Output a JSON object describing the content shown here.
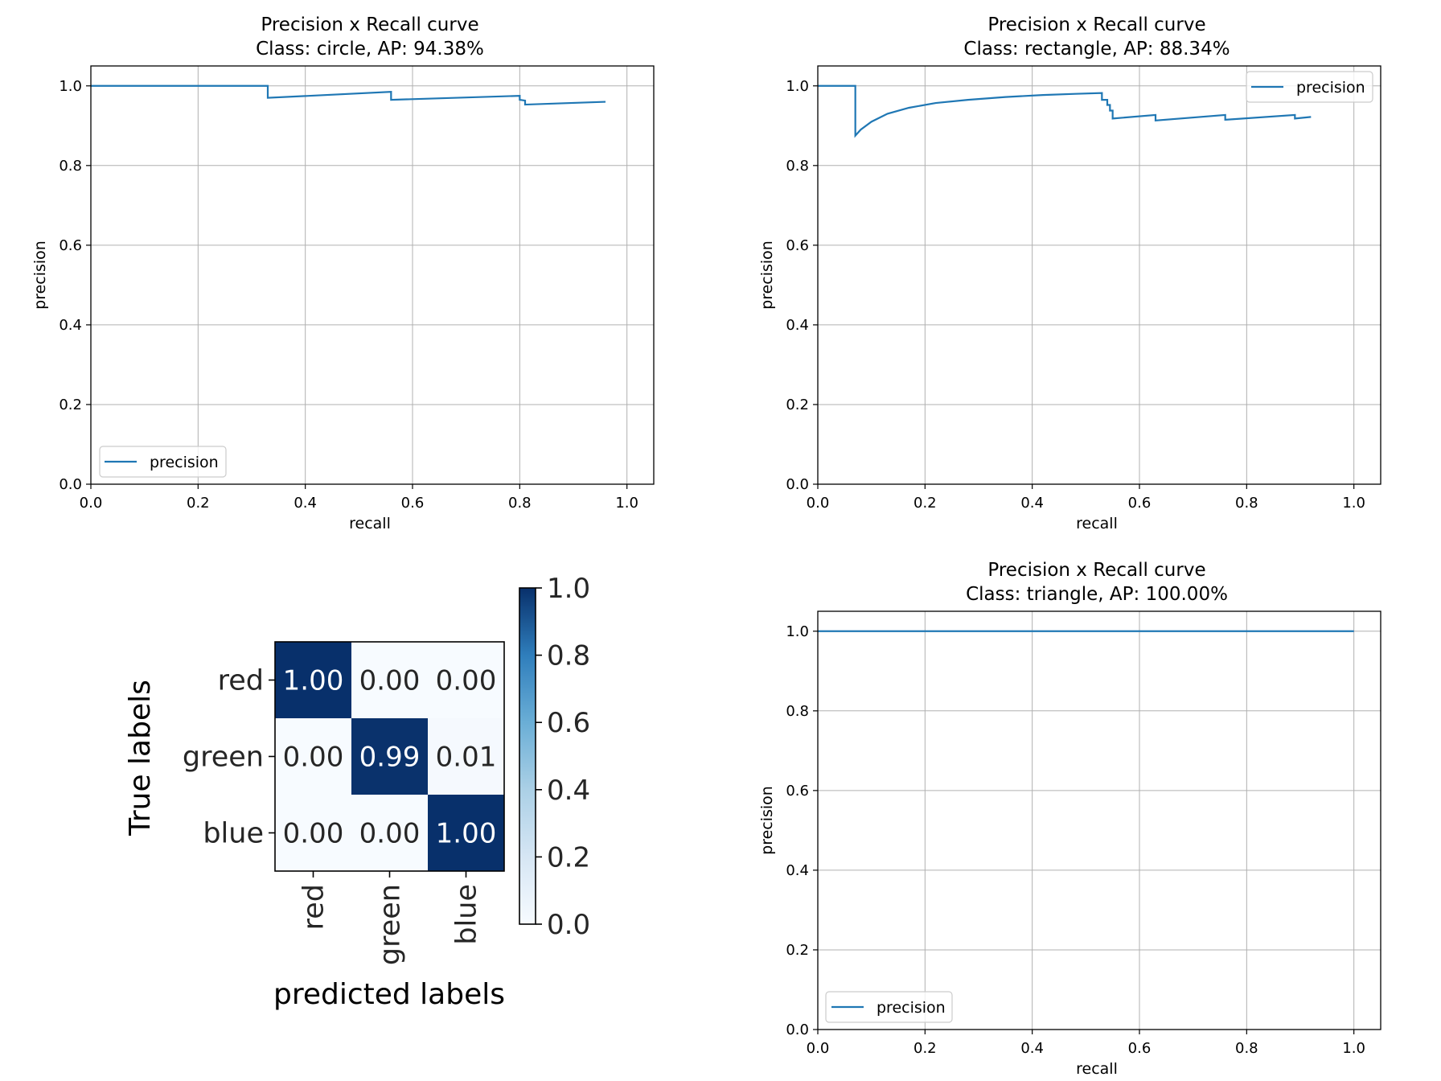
{
  "colors": {
    "line": "#1f77b4",
    "grid": "#b0b0b0",
    "axis": "#000000",
    "cmap_low": "#f7fbff",
    "cmap_high": "#08306b"
  },
  "chart_data": [
    {
      "type": "line",
      "title": "Precision x Recall curve",
      "subtitle": "Class: circle, AP: 94.38%",
      "xlabel": "recall",
      "ylabel": "precision",
      "xlim": [
        0.0,
        1.05
      ],
      "ylim": [
        0.0,
        1.05
      ],
      "xticks": [
        "0.0",
        "0.2",
        "0.4",
        "0.6",
        "0.8",
        "1.0"
      ],
      "yticks": [
        "0.0",
        "0.2",
        "0.4",
        "0.6",
        "0.8",
        "1.0"
      ],
      "grid": true,
      "legend": "lower-left",
      "series": [
        {
          "name": "precision",
          "x": [
            0.0,
            0.33,
            0.33,
            0.56,
            0.56,
            0.8,
            0.8,
            0.81,
            0.81,
            0.96
          ],
          "y": [
            1.0,
            1.0,
            0.97,
            0.985,
            0.965,
            0.975,
            0.965,
            0.963,
            0.953,
            0.96
          ]
        }
      ]
    },
    {
      "type": "line",
      "title": "Precision x Recall curve",
      "subtitle": "Class: rectangle, AP: 88.34%",
      "xlabel": "recall",
      "ylabel": "precision",
      "xlim": [
        0.0,
        1.05
      ],
      "ylim": [
        0.0,
        1.05
      ],
      "xticks": [
        "0.0",
        "0.2",
        "0.4",
        "0.6",
        "0.8",
        "1.0"
      ],
      "yticks": [
        "0.0",
        "0.2",
        "0.4",
        "0.6",
        "0.8",
        "1.0"
      ],
      "grid": true,
      "legend": "upper-right",
      "series": [
        {
          "name": "precision",
          "x": [
            0.0,
            0.07,
            0.07,
            0.08,
            0.1,
            0.13,
            0.17,
            0.22,
            0.28,
            0.35,
            0.42,
            0.48,
            0.53,
            0.53,
            0.54,
            0.54,
            0.545,
            0.545,
            0.55,
            0.55,
            0.63,
            0.63,
            0.76,
            0.76,
            0.89,
            0.89,
            0.92
          ],
          "y": [
            1.0,
            1.0,
            0.875,
            0.89,
            0.91,
            0.93,
            0.945,
            0.957,
            0.965,
            0.972,
            0.977,
            0.98,
            0.982,
            0.965,
            0.965,
            0.952,
            0.952,
            0.938,
            0.938,
            0.918,
            0.927,
            0.913,
            0.927,
            0.915,
            0.927,
            0.918,
            0.922
          ]
        }
      ]
    },
    {
      "type": "line",
      "title": "Precision x Recall curve",
      "subtitle": "Class: triangle, AP: 100.00%",
      "xlabel": "recall",
      "ylabel": "precision",
      "xlim": [
        0.0,
        1.05
      ],
      "ylim": [
        0.0,
        1.05
      ],
      "xticks": [
        "0.0",
        "0.2",
        "0.4",
        "0.6",
        "0.8",
        "1.0"
      ],
      "yticks": [
        "0.0",
        "0.2",
        "0.4",
        "0.6",
        "0.8",
        "1.0"
      ],
      "grid": true,
      "legend": "lower-left",
      "series": [
        {
          "name": "precision",
          "x": [
            0.0,
            1.0
          ],
          "y": [
            1.0,
            1.0
          ]
        }
      ]
    },
    {
      "type": "heatmap",
      "xlabel": "predicted labels",
      "ylabel": "True labels",
      "x_categories": [
        "red",
        "green",
        "blue"
      ],
      "y_categories": [
        "red",
        "green",
        "blue"
      ],
      "values": [
        [
          1.0,
          0.0,
          0.0
        ],
        [
          0.0,
          0.99,
          0.01
        ],
        [
          0.0,
          0.0,
          1.0
        ]
      ],
      "cell_labels": [
        [
          "1.00",
          "0.00",
          "0.00"
        ],
        [
          "0.00",
          "0.99",
          "0.01"
        ],
        [
          "0.00",
          "0.00",
          "1.00"
        ]
      ],
      "colorbar": {
        "range": [
          0.0,
          1.0
        ],
        "ticks": [
          "0.0",
          "0.2",
          "0.4",
          "0.6",
          "0.8",
          "1.0"
        ]
      }
    }
  ]
}
